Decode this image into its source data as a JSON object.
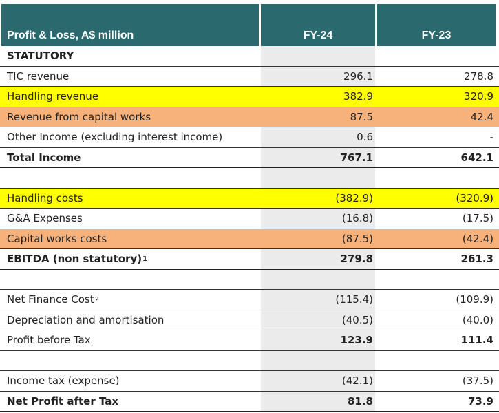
{
  "header": {
    "label": "Profit & Loss, A$ million",
    "col1": "FY-24",
    "col2": "FY-23"
  },
  "rows": [
    {
      "label": "STATUTORY",
      "v1": "",
      "v2": "",
      "style": "bold",
      "hl": ""
    },
    {
      "label": "TIC revenue",
      "v1": "296.1",
      "v2": "278.8",
      "style": "",
      "hl": ""
    },
    {
      "label": "Handling revenue",
      "v1": "382.9",
      "v2": "320.9",
      "style": "",
      "hl": "yellow"
    },
    {
      "label": "Revenue from capital works",
      "v1": "87.5",
      "v2": "42.4",
      "style": "",
      "hl": "orange"
    },
    {
      "label": "Other Income (excluding interest income)",
      "v1": "0.6",
      "v2": "-",
      "style": "",
      "hl": ""
    },
    {
      "label": "Total Income",
      "v1": "767.1",
      "v2": "642.1",
      "style": "bold",
      "hl": ""
    },
    {
      "label": "",
      "v1": "",
      "v2": "",
      "style": "",
      "hl": ""
    },
    {
      "label": "Handling costs",
      "v1": "(382.9)",
      "v2": "(320.9)",
      "style": "",
      "hl": "yellow"
    },
    {
      "label": "G&A Expenses",
      "v1": "(16.8)",
      "v2": "(17.5)",
      "style": "",
      "hl": ""
    },
    {
      "label": "Capital works costs",
      "v1": "(87.5)",
      "v2": "(42.4)",
      "style": "",
      "hl": "orange"
    },
    {
      "label": "EBITDA (non statutory)",
      "sup": "1",
      "v1": "279.8",
      "v2": "261.3",
      "style": "bold",
      "hl": ""
    },
    {
      "label": "",
      "v1": "",
      "v2": "",
      "style": "",
      "hl": ""
    },
    {
      "label": "Net Finance Cost",
      "sup": "2",
      "v1": "(115.4)",
      "v2": "(109.9)",
      "style": "",
      "hl": ""
    },
    {
      "label": "Depreciation and amortisation",
      "v1": "(40.5)",
      "v2": "(40.0)",
      "style": "",
      "hl": ""
    },
    {
      "label": "Profit before Tax",
      "v1": "123.9",
      "v2": "111.4",
      "style": "boldvals",
      "hl": ""
    },
    {
      "label": "",
      "v1": "",
      "v2": "",
      "style": "",
      "hl": ""
    },
    {
      "label": "Income tax (expense)",
      "v1": "(42.1)",
      "v2": "(37.5)",
      "style": "",
      "hl": ""
    },
    {
      "label": "Net Profit after Tax",
      "v1": "81.8",
      "v2": "73.9",
      "style": "bold",
      "hl": ""
    }
  ],
  "colors": {
    "header_bg": "#2a6a6e",
    "highlight_yellow": "#ffff00",
    "highlight_orange": "#f7b17a",
    "column_shade": "#ebebeb"
  }
}
